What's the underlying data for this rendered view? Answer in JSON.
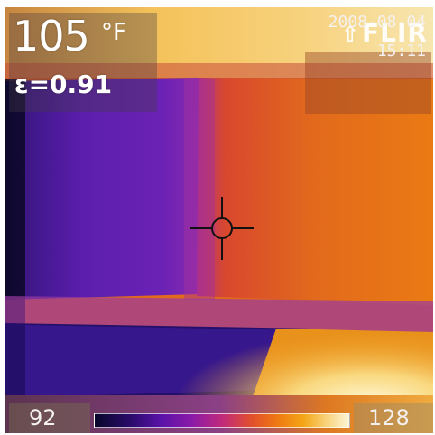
{
  "spot": {
    "temperature": "105",
    "unit": "°F"
  },
  "emissivity": "ε=0.91",
  "logo": {
    "mark": "⇧",
    "text": "FLIR"
  },
  "timestamp": {
    "date": "2008-08-04",
    "time": "15:11"
  },
  "scale": {
    "min": "92",
    "max": "128"
  },
  "colors": {
    "cold": "#1b0c4a",
    "mid": "#6b1fb0",
    "warm": "#e06a1e",
    "hot": "#fdf2c0"
  }
}
